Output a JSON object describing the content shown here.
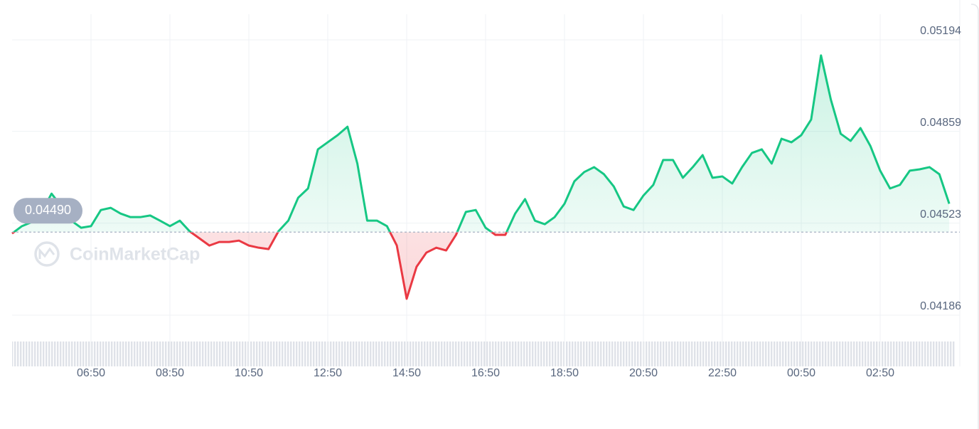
{
  "chart_data": {
    "type": "line",
    "watermark": "CoinMarketCap",
    "x": [
      "04:50",
      "05:05",
      "05:20",
      "05:35",
      "05:50",
      "06:05",
      "06:20",
      "06:35",
      "06:50",
      "07:05",
      "07:20",
      "07:35",
      "07:50",
      "08:05",
      "08:20",
      "08:35",
      "08:50",
      "09:05",
      "09:20",
      "09:35",
      "09:50",
      "10:05",
      "10:20",
      "10:35",
      "10:50",
      "11:05",
      "11:20",
      "11:35",
      "11:50",
      "12:05",
      "12:20",
      "12:35",
      "12:50",
      "13:05",
      "13:20",
      "13:35",
      "13:50",
      "14:05",
      "14:20",
      "14:35",
      "14:50",
      "15:05",
      "15:20",
      "15:35",
      "15:50",
      "16:05",
      "16:20",
      "16:35",
      "16:50",
      "17:05",
      "17:20",
      "17:35",
      "17:50",
      "18:05",
      "18:20",
      "18:35",
      "18:50",
      "19:05",
      "19:20",
      "19:35",
      "19:50",
      "20:05",
      "20:20",
      "20:35",
      "20:50",
      "21:05",
      "21:20",
      "21:35",
      "21:50",
      "22:05",
      "22:20",
      "22:35",
      "22:50",
      "23:05",
      "23:20",
      "23:35",
      "23:50",
      "00:05",
      "00:20",
      "00:35",
      "00:50",
      "01:05",
      "01:20",
      "01:35",
      "01:50",
      "02:05",
      "02:20",
      "02:35",
      "02:50",
      "03:05",
      "03:20",
      "03:35",
      "03:50",
      "04:05",
      "04:20",
      "04:35"
    ],
    "series": [
      {
        "values": [
          0.04485,
          0.04512,
          0.04527,
          0.04564,
          0.04631,
          0.04584,
          0.04532,
          0.04506,
          0.04512,
          0.04571,
          0.04579,
          0.04558,
          0.04545,
          0.04545,
          0.04551,
          0.04532,
          0.04512,
          0.04532,
          0.04493,
          0.04467,
          0.04441,
          0.04454,
          0.04454,
          0.04459,
          0.04441,
          0.04433,
          0.04428,
          0.04493,
          0.04532,
          0.04616,
          0.0465,
          0.04793,
          0.04819,
          0.04845,
          0.04876,
          0.04741,
          0.04532,
          0.04532,
          0.04512,
          0.04441,
          0.04246,
          0.04363,
          0.04415,
          0.04433,
          0.04423,
          0.0448,
          0.04564,
          0.04571,
          0.04506,
          0.0448,
          0.0448,
          0.04558,
          0.04611,
          0.04532,
          0.04519,
          0.04545,
          0.04594,
          0.04676,
          0.0471,
          0.04728,
          0.04702,
          0.04657,
          0.04584,
          0.04571,
          0.04624,
          0.04663,
          0.04754,
          0.04754,
          0.04689,
          0.04728,
          0.04772,
          0.04689,
          0.04694,
          0.04668,
          0.04728,
          0.0478,
          0.04793,
          0.04741,
          0.04832,
          0.04819,
          0.04845,
          0.04902,
          0.05137,
          0.04975,
          0.0485,
          0.04824,
          0.04871,
          0.04806,
          0.04715,
          0.0465,
          0.04663,
          0.04715,
          0.0472,
          0.04728,
          0.04702,
          0.04594
        ]
      }
    ],
    "baseline": {
      "value": 0.0449,
      "label": "0.04490"
    },
    "up_color": "#16c784",
    "down_color": "#ea3943",
    "ylim": [
      0.04186,
      0.05194
    ],
    "yticks": [
      0.04186,
      0.04523,
      0.04859,
      0.05194
    ],
    "xticks": [
      "06:50",
      "08:50",
      "10:50",
      "12:50",
      "14:50",
      "16:50",
      "18:50",
      "20:50",
      "22:50",
      "00:50",
      "02:50"
    ],
    "grid": true
  }
}
